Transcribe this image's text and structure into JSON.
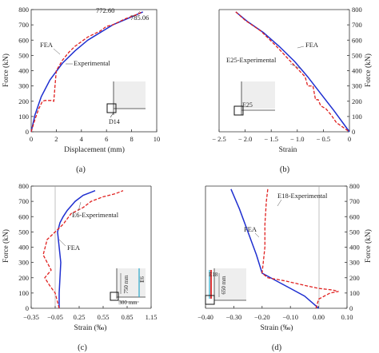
{
  "chart_data": [
    {
      "panel": "(a)",
      "type": "line",
      "xlabel": "Displacement (mm)",
      "ylabel": "Force (kN)",
      "xlim": [
        0,
        10
      ],
      "ylim": [
        0,
        800
      ],
      "xticks": [
        0,
        2,
        4,
        6,
        8,
        10
      ],
      "yticks": [
        0,
        100,
        200,
        300,
        400,
        500,
        600,
        700,
        800
      ],
      "series": [
        {
          "name": "FEA",
          "style": "solid",
          "color": "#1f2fd0",
          "x": [
            0,
            0.3,
            0.8,
            1.5,
            2.5,
            3.5,
            4.5,
            5.5,
            6.5,
            7.5,
            8.5,
            8.9
          ],
          "y": [
            0,
            110,
            230,
            340,
            450,
            530,
            600,
            650,
            700,
            735,
            770,
            785
          ]
        },
        {
          "name": "Experimental",
          "style": "dashed",
          "color": "#e0201f",
          "x": [
            0,
            0.3,
            0.6,
            0.9,
            1.1,
            1.6,
            1.8,
            1.9,
            2.0,
            2.5,
            3.0,
            3.5,
            4.5,
            5.5,
            6.0,
            6.5,
            7.0,
            7.5,
            8.0,
            8.5,
            8.8
          ],
          "y": [
            0,
            80,
            150,
            200,
            205,
            205,
            200,
            300,
            400,
            470,
            520,
            560,
            620,
            660,
            690,
            700,
            720,
            740,
            755,
            770,
            785
          ]
        }
      ],
      "annotations": [
        "772.60",
        "785.06",
        "FEA",
        "Experimental"
      ],
      "inset_label": "D14"
    },
    {
      "panel": "(b)",
      "type": "line",
      "xlabel": "Strain",
      "ylabel": "Force (kN)",
      "xlim": [
        -2.5,
        0
      ],
      "ylim": [
        0,
        800
      ],
      "xticks": [
        -2.5,
        -2.0,
        -1.5,
        -1.0,
        -0.5,
        0
      ],
      "xtick_labels": [
        "− 2.5",
        "− 2.0",
        "− 1.5",
        "− 1.0",
        "− 0.5",
        "0"
      ],
      "yticks": [
        0,
        100,
        200,
        300,
        400,
        500,
        600,
        700,
        800
      ],
      "series": [
        {
          "name": "FEA",
          "style": "solid",
          "color": "#1f2fd0",
          "x": [
            -2.18,
            -1.95,
            -1.65,
            -1.35,
            -1.05,
            -0.8,
            -0.55,
            -0.3,
            0
          ],
          "y": [
            785,
            720,
            650,
            560,
            460,
            360,
            250,
            140,
            0
          ]
        },
        {
          "name": "E25-Experimental",
          "style": "dashed",
          "color": "#e0201f",
          "x": [
            -2.18,
            -2.0,
            -1.7,
            -1.4,
            -1.1,
            -0.85,
            -0.8,
            -0.7,
            -0.65,
            -0.6,
            -0.55,
            -0.45,
            -0.35,
            -0.25,
            0
          ],
          "y": [
            785,
            730,
            660,
            560,
            450,
            360,
            300,
            300,
            210,
            210,
            170,
            150,
            110,
            60,
            0
          ]
        }
      ],
      "annotations": [
        "FEA",
        "E25-Experimental"
      ],
      "inset_label": "E25"
    },
    {
      "panel": "(c)",
      "type": "line",
      "xlabel": "Strain (‰)",
      "ylabel": "Force (kN)",
      "xlim": [
        -0.35,
        1.15
      ],
      "ylim": [
        0,
        800
      ],
      "xticks": [
        -0.35,
        -0.05,
        0.25,
        0.55,
        0.85,
        1.15
      ],
      "xtick_labels": [
        "−0.35",
        "−0.05",
        "0.25",
        "0.55",
        "0.85",
        "1.15"
      ],
      "yticks": [
        0,
        100,
        200,
        300,
        400,
        500,
        600,
        700,
        800
      ],
      "series": [
        {
          "name": "FEA",
          "style": "solid",
          "color": "#1f2fd0",
          "x": [
            0.0,
            0.0,
            0.01,
            0.02,
            0.0,
            -0.02,
            0.01,
            0.05,
            0.1,
            0.2,
            0.3,
            0.4,
            0.45
          ],
          "y": [
            0,
            100,
            200,
            300,
            400,
            500,
            560,
            600,
            640,
            700,
            740,
            760,
            770
          ]
        },
        {
          "name": "E6-Experimental",
          "style": "dashed",
          "color": "#e0201f",
          "x": [
            0.0,
            -0.05,
            -0.12,
            -0.18,
            -0.1,
            -0.2,
            -0.15,
            0.05,
            0.15,
            0.3,
            0.4,
            0.55,
            0.7,
            0.75,
            0.8
          ],
          "y": [
            0,
            100,
            150,
            200,
            250,
            350,
            450,
            550,
            620,
            660,
            700,
            730,
            750,
            760,
            770
          ]
        }
      ],
      "annotations": [
        "E6-Experimental",
        "FEA"
      ],
      "inset_labels": [
        "750 mm",
        "300 mm",
        "E6"
      ]
    },
    {
      "panel": "(d)",
      "type": "line",
      "xlabel": "Strain (‰)",
      "ylabel": "Force (kN)",
      "xlim": [
        -0.4,
        0.1
      ],
      "ylim": [
        0,
        800
      ],
      "xticks": [
        -0.4,
        -0.3,
        -0.2,
        -0.1,
        0,
        0.1
      ],
      "xtick_labels": [
        "−0.40",
        "−0.30",
        "−0.20",
        "−0.10",
        "0.00",
        "0.10"
      ],
      "yticks": [
        0,
        100,
        200,
        300,
        400,
        500,
        600,
        700,
        800
      ],
      "series": [
        {
          "name": "FEA",
          "style": "solid",
          "color": "#1f2fd0",
          "x": [
            -0.31,
            -0.28,
            -0.25,
            -0.22,
            -0.2,
            -0.15,
            -0.1,
            -0.05,
            0.0
          ],
          "y": [
            780,
            650,
            500,
            350,
            230,
            180,
            130,
            80,
            0
          ]
        },
        {
          "name": "E18-Experimental",
          "style": "dashed",
          "color": "#e0201f",
          "x": [
            -0.18,
            -0.185,
            -0.19,
            -0.19,
            -0.2,
            -0.18,
            -0.12,
            -0.05,
            0.0,
            0.05,
            0.07,
            0.04,
            0.0,
            -0.01
          ],
          "y": [
            780,
            700,
            550,
            400,
            230,
            200,
            180,
            150,
            130,
            120,
            110,
            100,
            60,
            0
          ]
        }
      ],
      "annotations": [
        "E18-Experimental",
        "FEA"
      ],
      "inset_labels": [
        "650 mm",
        "E18"
      ]
    }
  ],
  "panel_labels": [
    "(a)",
    "(b)",
    "(c)",
    "(d)"
  ],
  "colors": {
    "fea": "#1f2fd0",
    "experimental": "#e0201f",
    "axis": "#333333"
  }
}
